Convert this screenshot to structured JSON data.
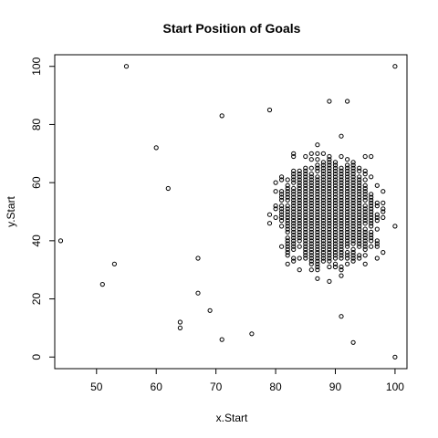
{
  "chart_data": {
    "type": "scatter",
    "title": "Start Position of Goals",
    "xlabel": "x.Start",
    "ylabel": "y.Start",
    "xlim": [
      43,
      102
    ],
    "ylim": [
      -4,
      104
    ],
    "x_ticks": [
      50,
      60,
      70,
      80,
      90,
      100
    ],
    "y_ticks": [
      0,
      20,
      40,
      60,
      80,
      100
    ],
    "grid": false,
    "marker": "open-circle",
    "outliers": [
      {
        "x": 44,
        "y": 40
      },
      {
        "x": 51,
        "y": 25
      },
      {
        "x": 53,
        "y": 32
      },
      {
        "x": 55,
        "y": 100
      },
      {
        "x": 60,
        "y": 72
      },
      {
        "x": 62,
        "y": 58
      },
      {
        "x": 64,
        "y": 12
      },
      {
        "x": 64,
        "y": 10
      },
      {
        "x": 67,
        "y": 22
      },
      {
        "x": 67,
        "y": 34
      },
      {
        "x": 69,
        "y": 16
      },
      {
        "x": 71,
        "y": 6
      },
      {
        "x": 71,
        "y": 83
      },
      {
        "x": 76,
        "y": 8
      },
      {
        "x": 79,
        "y": 85
      },
      {
        "x": 93,
        "y": 5
      },
      {
        "x": 100,
        "y": 100
      },
      {
        "x": 100,
        "y": 0
      },
      {
        "x": 89,
        "y": 88
      },
      {
        "x": 91,
        "y": 14
      },
      {
        "x": 92,
        "y": 88
      }
    ],
    "dense_cluster": {
      "x_range": [
        67,
        100
      ],
      "y_range": [
        14,
        78
      ],
      "center_x": 89,
      "center_y": 50,
      "note": "several thousand overlapping points densest around x 84-97, y 30-70"
    }
  }
}
